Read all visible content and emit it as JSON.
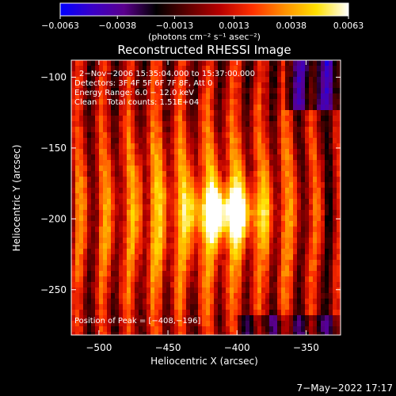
{
  "chart_data": {
    "type": "heatmap",
    "title": "Reconstructed RHESSI Image",
    "xlabel": "Heliocentric X (arcsec)",
    "ylabel": "Heliocentric Y (arcsec)",
    "xlim": [
      -520,
      -325
    ],
    "ylim": [
      -282,
      -88
    ],
    "x_ticks": [
      -500,
      -450,
      -400,
      -350
    ],
    "y_ticks": [
      -100,
      -150,
      -200,
      -250
    ],
    "x_tick_labels": [
      "−500",
      "−450",
      "−400",
      "−350"
    ],
    "y_tick_labels": [
      "−100",
      "−150",
      "−200",
      "−250"
    ],
    "peak": {
      "x": -408,
      "y": -196
    },
    "annotations": [
      "2−Nov−2006 15:35:04.000 to 15:37:00.000",
      "Detectors: 3F 4F 5F 6F 7F 8F, Att 0",
      "Energy Range: 6.0 − 12.0 keV",
      "Clean    Total counts: 1.51E+04"
    ],
    "peak_label": "Position of Peak = [−408,−196]",
    "colorbar": {
      "min": -0.0063,
      "max": 0.0063,
      "ticks": [
        -0.0063,
        -0.0038,
        -0.0013,
        0.0013,
        0.0038,
        0.0063
      ],
      "tick_labels": [
        "−0.0063",
        "−0.0038",
        "−0.0013",
        "0.0013",
        "0.0038",
        "0.0063"
      ],
      "units_label": "(photons cm⁻² s⁻¹ asec⁻²)",
      "colormap": [
        "#0000ff",
        "#3a00c8",
        "#5a008c",
        "#000000",
        "#600000",
        "#b80000",
        "#ff3000",
        "#ff9000",
        "#ffe000",
        "#ffffff"
      ]
    },
    "grid": false
  },
  "footer": {
    "timestamp": "7−May−2022 17:17"
  }
}
